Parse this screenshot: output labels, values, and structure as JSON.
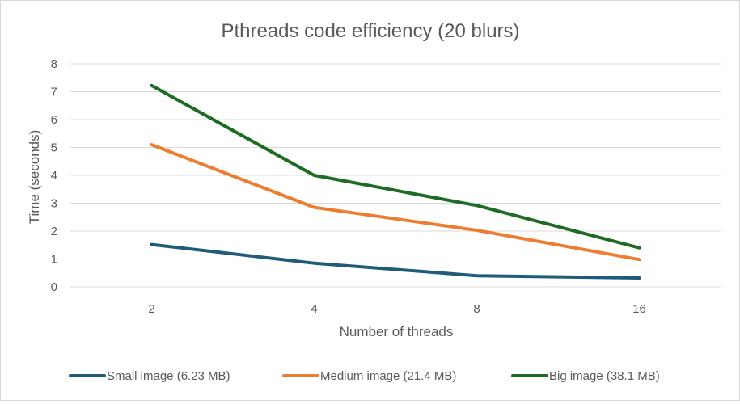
{
  "chart_data": {
    "type": "line",
    "title": "Pthreads code efficiency (20 blurs)",
    "xlabel": "Number of threads",
    "ylabel": "Time (seconds)",
    "categories": [
      "2",
      "4",
      "8",
      "16"
    ],
    "ylim": [
      0,
      8
    ],
    "yticks": [
      "0",
      "1",
      "2",
      "3",
      "4",
      "5",
      "6",
      "7",
      "8"
    ],
    "grid": true,
    "legend_position": "bottom",
    "series": [
      {
        "name": "Small image (6.23 MB)",
        "color": "#1f5c7a",
        "values": [
          1.52,
          0.85,
          0.4,
          0.32
        ]
      },
      {
        "name": "Medium image (21.4 MB)",
        "color": "#ed7d31",
        "values": [
          5.1,
          2.85,
          2.03,
          0.98
        ]
      },
      {
        "name": "Big image (38.1 MB)",
        "color": "#1e6b24",
        "values": [
          7.22,
          4.0,
          2.92,
          1.4
        ]
      }
    ]
  }
}
